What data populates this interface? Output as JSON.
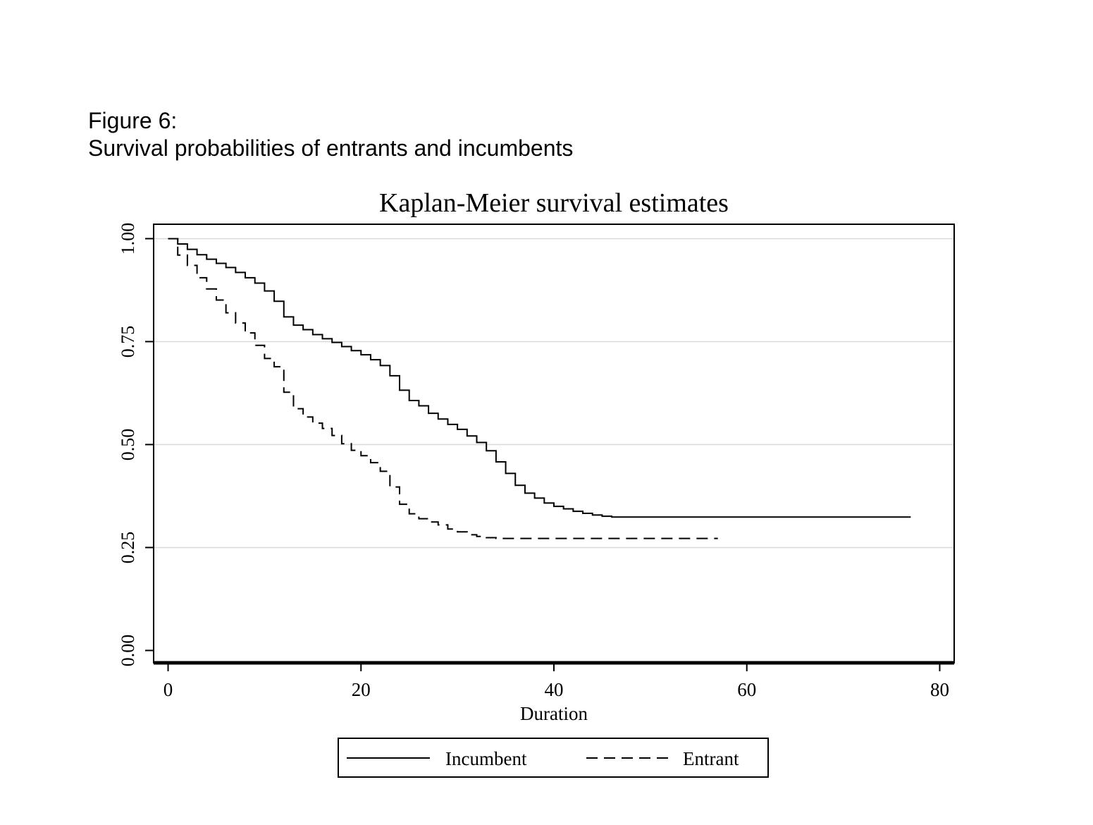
{
  "figure": {
    "label": "Figure 6:",
    "caption": "Survival probabilities of entrants and incumbents"
  },
  "chart_data": {
    "type": "line",
    "step": true,
    "title": "Kaplan-Meier survival estimates",
    "xlabel": "Duration",
    "ylabel": "",
    "xlim": [
      -1.5,
      81.5
    ],
    "ylim": [
      -0.03,
      1.035
    ],
    "xticks": [
      0,
      20,
      40,
      60,
      80
    ],
    "xtick_labels": [
      "0",
      "20",
      "40",
      "60",
      "80"
    ],
    "yticks": [
      0,
      0.25,
      0.5,
      0.75,
      1
    ],
    "ytick_labels": [
      "0.00",
      "0.25",
      "0.50",
      "0.75",
      "1.00"
    ],
    "grid": "horizontal",
    "legend_position": "bottom",
    "series": [
      {
        "name": "Incumbent",
        "style": "solid",
        "color": "#000000",
        "x": [
          0,
          1,
          2,
          3,
          4,
          5,
          6,
          7,
          8,
          9,
          10,
          11,
          12,
          13,
          14,
          15,
          16,
          17,
          18,
          19,
          20,
          21,
          22,
          23,
          24,
          25,
          26,
          27,
          28,
          29,
          30,
          31,
          32,
          33,
          34,
          35,
          36,
          37,
          38,
          39,
          40,
          41,
          42,
          43,
          44,
          45,
          46,
          77
        ],
        "y": [
          1.0,
          0.987,
          0.974,
          0.961,
          0.95,
          0.94,
          0.93,
          0.918,
          0.905,
          0.892,
          0.873,
          0.848,
          0.81,
          0.79,
          0.779,
          0.767,
          0.757,
          0.748,
          0.738,
          0.728,
          0.718,
          0.706,
          0.692,
          0.667,
          0.632,
          0.607,
          0.594,
          0.576,
          0.562,
          0.549,
          0.537,
          0.521,
          0.505,
          0.485,
          0.458,
          0.43,
          0.401,
          0.382,
          0.37,
          0.358,
          0.35,
          0.344,
          0.338,
          0.333,
          0.329,
          0.326,
          0.324,
          0.324
        ]
      },
      {
        "name": "Entrant",
        "style": "dashed",
        "color": "#000000",
        "x": [
          0,
          1,
          2,
          3,
          4,
          5,
          6,
          7,
          8,
          9,
          10,
          11,
          12,
          13,
          14,
          15,
          16,
          17,
          18,
          19,
          20,
          21,
          22,
          23,
          24,
          25,
          26,
          27,
          28,
          29,
          30,
          31,
          32,
          33,
          34,
          57
        ],
        "y": [
          1.0,
          0.96,
          0.935,
          0.905,
          0.878,
          0.851,
          0.82,
          0.795,
          0.771,
          0.741,
          0.709,
          0.689,
          0.627,
          0.587,
          0.567,
          0.552,
          0.539,
          0.522,
          0.502,
          0.486,
          0.473,
          0.456,
          0.435,
          0.397,
          0.355,
          0.332,
          0.32,
          0.312,
          0.305,
          0.295,
          0.288,
          0.281,
          0.277,
          0.274,
          0.272,
          0.272
        ]
      }
    ]
  }
}
